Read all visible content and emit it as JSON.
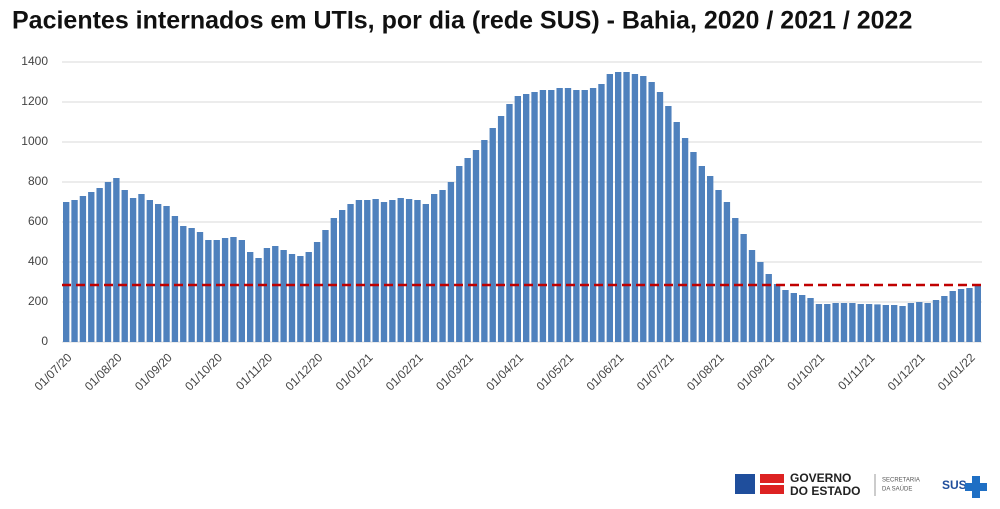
{
  "chart_data": {
    "type": "bar",
    "title": "Pacientes internados em UTIs, por dia (rede SUS) - Bahia, 2020 / 2021 / 2022",
    "categories": [
      "01/07/20",
      null,
      null,
      null,
      null,
      null,
      "01/08/20",
      null,
      null,
      null,
      null,
      null,
      "01/09/20",
      null,
      null,
      null,
      null,
      null,
      "01/10/20",
      null,
      null,
      null,
      null,
      null,
      "01/11/20",
      null,
      null,
      null,
      null,
      null,
      "01/12/20",
      null,
      null,
      null,
      null,
      null,
      "01/01/21",
      null,
      null,
      null,
      null,
      null,
      "01/02/21",
      null,
      null,
      null,
      null,
      null,
      "01/03/21",
      null,
      null,
      null,
      null,
      null,
      "01/04/21",
      null,
      null,
      null,
      null,
      null,
      "01/05/21",
      null,
      null,
      null,
      null,
      null,
      "01/06/21",
      null,
      null,
      null,
      null,
      null,
      "01/07/21",
      null,
      null,
      null,
      null,
      null,
      "01/08/21",
      null,
      null,
      null,
      null,
      null,
      "01/09/21",
      null,
      null,
      null,
      null,
      null,
      "01/10/21",
      null,
      null,
      null,
      null,
      null,
      "01/11/21",
      null,
      null,
      null,
      null,
      null,
      "01/12/21",
      null,
      null,
      null,
      null,
      null,
      "01/01/22",
      null
    ],
    "values": [
      700,
      710,
      730,
      750,
      770,
      800,
      820,
      760,
      720,
      740,
      710,
      690,
      680,
      630,
      580,
      570,
      550,
      510,
      510,
      520,
      525,
      510,
      450,
      420,
      470,
      480,
      460,
      440,
      430,
      450,
      500,
      560,
      620,
      660,
      690,
      710,
      710,
      715,
      700,
      710,
      720,
      715,
      710,
      690,
      740,
      760,
      800,
      880,
      920,
      960,
      1010,
      1070,
      1130,
      1190,
      1230,
      1240,
      1250,
      1260,
      1260,
      1270,
      1270,
      1260,
      1260,
      1270,
      1290,
      1340,
      1350,
      1350,
      1340,
      1330,
      1300,
      1250,
      1180,
      1100,
      1020,
      950,
      880,
      830,
      760,
      700,
      620,
      540,
      460,
      400,
      340,
      290,
      260,
      245,
      235,
      220,
      190,
      190,
      195,
      195,
      195,
      190,
      190,
      188,
      185,
      185,
      180,
      195,
      200,
      195,
      210,
      230,
      255,
      265,
      270,
      280
    ],
    "color": "#4f81bd",
    "reference_line": 285,
    "reference_color": "#c00000",
    "ylim": [
      0,
      1400
    ],
    "yticks": [
      0,
      200,
      400,
      600,
      800,
      1000,
      1200,
      1400
    ],
    "grid": true
  },
  "footer": {
    "governo": "GOVERNO",
    "estado": "DO ESTADO",
    "secretaria": "SECRETARIA",
    "saude": "DA SAÚDE",
    "sus": "SUS"
  }
}
